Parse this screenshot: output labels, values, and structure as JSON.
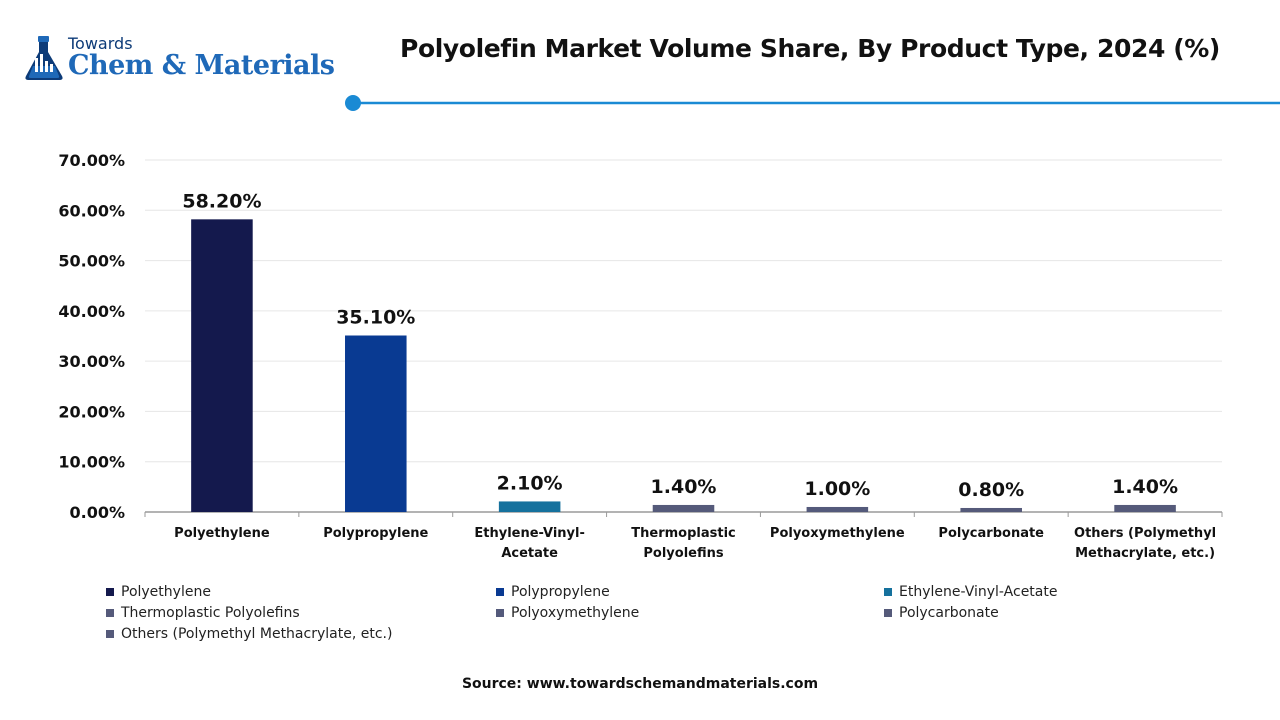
{
  "logo": {
    "top": "Towards",
    "main": "Chem & Materials"
  },
  "source": "Source: www.towardschemandmaterials.com",
  "colors": {
    "accent": "#1a8ad4",
    "grid": "#e6e6e6",
    "axis": "#9a9a9a"
  },
  "chart_data": {
    "type": "bar",
    "title": "Polyolefin Market Volume Share, By Product Type, 2024 (%)",
    "xlabel": "",
    "ylabel": "",
    "ylim": [
      0,
      70
    ],
    "yticks": [
      "0.00%",
      "10.00%",
      "20.00%",
      "30.00%",
      "40.00%",
      "50.00%",
      "60.00%",
      "70.00%"
    ],
    "grid": true,
    "legend_position": "bottom",
    "categories": [
      [
        "Polyethylene"
      ],
      [
        "Polypropylene"
      ],
      [
        "Ethylene-Vinyl-",
        "Acetate"
      ],
      [
        "Thermoplastic",
        "Polyolefins"
      ],
      [
        "Polyoxymethylene"
      ],
      [
        "Polycarbonate"
      ],
      [
        "Others (Polymethyl",
        "Methacrylate, etc.)"
      ]
    ],
    "values": [
      58.2,
      35.1,
      2.1,
      1.4,
      1.0,
      0.8,
      1.4
    ],
    "value_labels": [
      "58.20%",
      "35.10%",
      "2.10%",
      "1.40%",
      "1.00%",
      "0.80%",
      "1.40%"
    ],
    "bar_colors": [
      "#14194d",
      "#093a92",
      "#15719d",
      "#555a7a",
      "#545a7b",
      "#555a7a",
      "#555a7a"
    ],
    "legend": [
      "Polyethylene",
      "Polypropylene",
      "Ethylene-Vinyl-Acetate",
      "Thermoplastic Polyolefins",
      "Polyoxymethylene",
      "Polycarbonate",
      "Others (Polymethyl Methacrylate, etc.)"
    ]
  }
}
